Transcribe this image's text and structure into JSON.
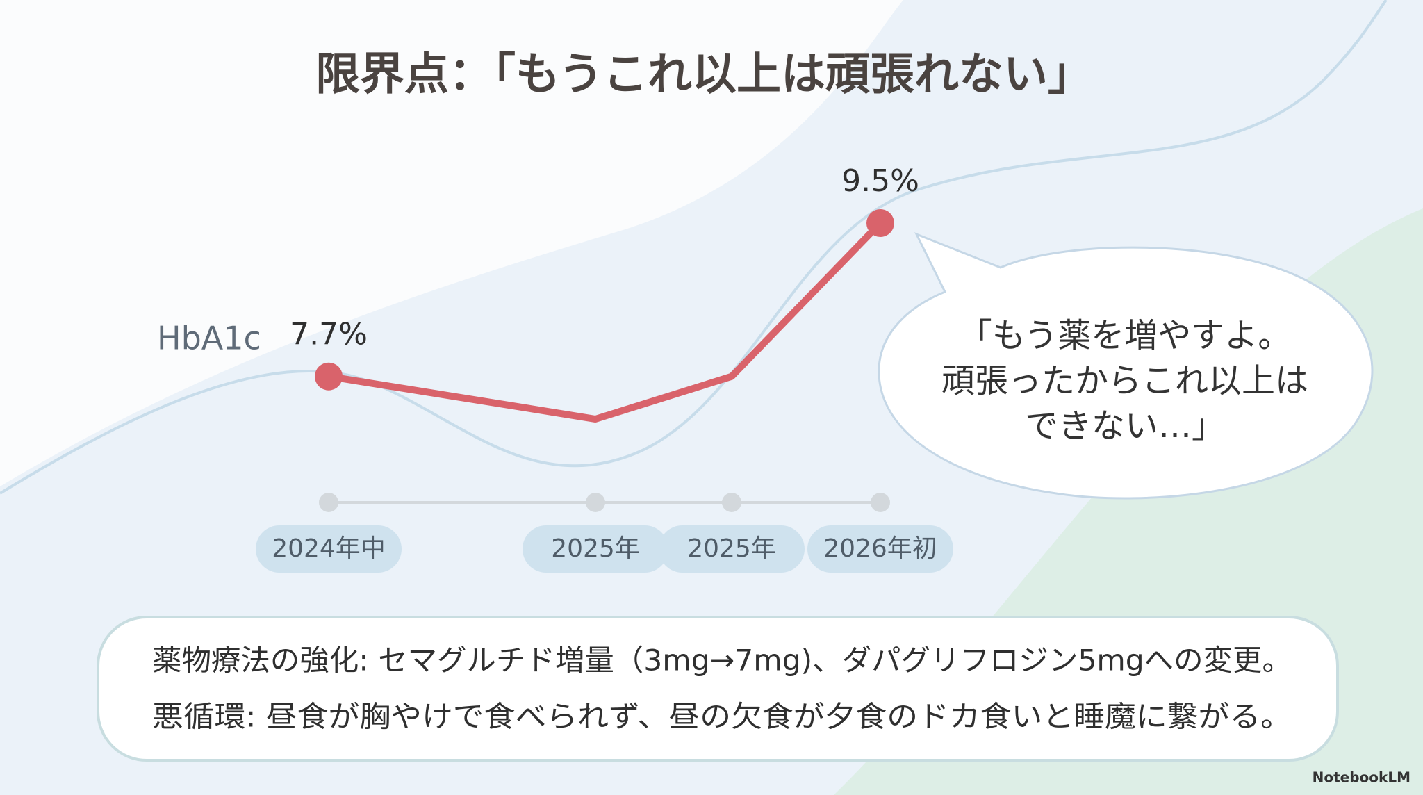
{
  "chart_data": {
    "type": "line",
    "title": "限界点：「もうこれ以上は頑張れない」",
    "y_label": "HbA1c",
    "categories": [
      "2024年中",
      "2025年",
      "2025年",
      "2026年初"
    ],
    "values": [
      7.7,
      7.2,
      7.7,
      9.5
    ],
    "value_labels": [
      "7.7%",
      null,
      null,
      "9.5%"
    ],
    "color": "#d9636b",
    "speech_bubble": [
      "「もう薬を増やすよ。",
      "頑張ったからこれ以上は",
      "できない…」"
    ],
    "notes": [
      "薬物療法の強化: セマグルチド増量（3mg→7mg)、ダパグリフロジン5mgへの変更。",
      "悪循環: 昼食が胸やけで食べられず、昼の欠食が夕食のドカ食いと睡魔に繋がる。"
    ],
    "watermark": "NotebookLM"
  }
}
